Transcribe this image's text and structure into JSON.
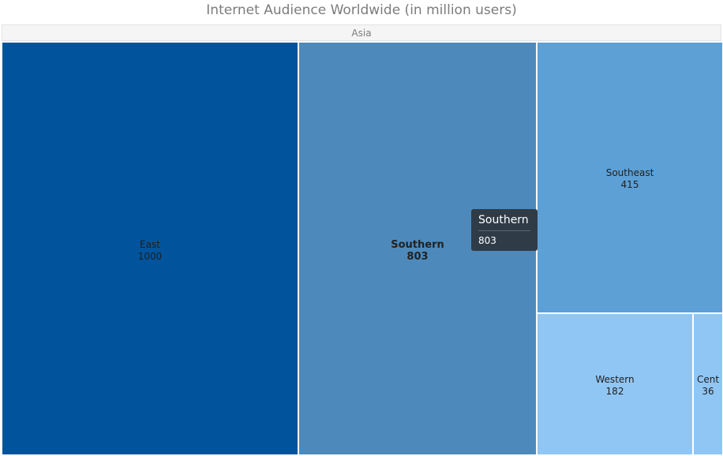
{
  "chart_data": {
    "type": "treemap",
    "title": "Internet Audience Worldwide (in million users)",
    "root": "Asia",
    "items": [
      {
        "name": "East",
        "value": 1000,
        "color": "#01549c"
      },
      {
        "name": "Southern",
        "value": 803,
        "color": "#4d8abb",
        "hovered": true
      },
      {
        "name": "Southeast",
        "value": 415,
        "color": "#5ca0d6"
      },
      {
        "name": "Western",
        "value": 182,
        "color": "#90c6f4"
      },
      {
        "name": "Cent",
        "value": 36,
        "color": "#90c6f4"
      }
    ]
  },
  "tooltip": {
    "title": "Southern",
    "value": "803"
  }
}
